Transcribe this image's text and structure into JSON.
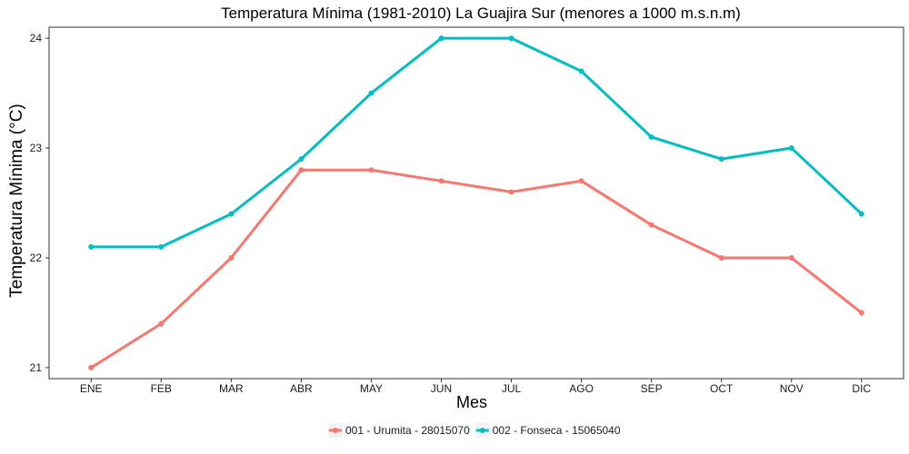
{
  "chart_data": {
    "type": "line",
    "title": "Temperatura Mínima (1981-2010) La Guajira Sur (menores a 1000 m.s.n.m)",
    "xlabel": "Mes",
    "ylabel": "Temperatura Mínima (°C)",
    "categories": [
      "ENE",
      "FEB",
      "MAR",
      "ABR",
      "MAY",
      "JUN",
      "JUL",
      "AGO",
      "SEP",
      "OCT",
      "NOV",
      "DIC"
    ],
    "ylim": [
      20.9,
      24.1
    ],
    "yticks": [
      "21",
      "22",
      "23",
      "24"
    ],
    "grid": false,
    "legend_position": "bottom",
    "series": [
      {
        "name": "001 - Urumita - 28015070",
        "color": "#F8766D",
        "values": [
          21.0,
          21.4,
          22.0,
          22.8,
          22.8,
          22.7,
          22.6,
          22.7,
          22.3,
          22.0,
          22.0,
          21.5
        ]
      },
      {
        "name": "002 - Fonseca - 15065040",
        "color": "#00BFC4",
        "values": [
          22.1,
          22.1,
          22.4,
          22.9,
          23.5,
          24.0,
          24.0,
          23.7,
          23.1,
          22.9,
          23.0,
          22.4
        ]
      }
    ]
  }
}
